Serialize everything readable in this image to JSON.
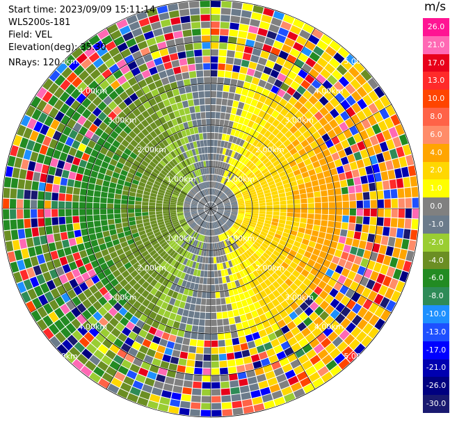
{
  "info": {
    "start_time": "Start time: 2023/09/09 15:11:14",
    "instrument": "WLS200s-181",
    "field": "Field: VEL",
    "elevation": "Elevation(deg): 35.30",
    "nrays": "NRays: 120"
  },
  "colorbar": {
    "unit": "m/s",
    "ticks": [
      "26.0",
      "21.0",
      "17.0",
      "13.0",
      "10.0",
      "8.0",
      "6.0",
      "4.0",
      "2.0",
      "1.0",
      "0.0",
      "-1.0",
      "-2.0",
      "-4.0",
      "-6.0",
      "-8.0",
      "-10.0",
      "-13.0",
      "-17.0",
      "-21.0",
      "-26.0",
      "-30.0"
    ],
    "colors": [
      "#ff1493",
      "#ff69b4",
      "#e8001a",
      "#ff2a2a",
      "#ff4500",
      "#ff6347",
      "#ff8c69",
      "#ffa500",
      "#ffd700",
      "#ffff00",
      "#808080",
      "#6b7b8b",
      "#9acd32",
      "#6b8e23",
      "#228b22",
      "#2e8b57",
      "#1e90ff",
      "#1e50ff",
      "#0000ff",
      "#0000b0",
      "#000080",
      "#191970"
    ]
  },
  "chart_data": {
    "type": "heatmap",
    "projection": "polar PPI",
    "field": "VEL",
    "unit": "m/s",
    "nrays": 120,
    "elevation_deg": 35.3,
    "range_rings_km": [
      1.0,
      2.0,
      3.0,
      4.0,
      5.0
    ],
    "ring_labels": [
      "1.00km",
      "2.00km",
      "3.00km",
      "4.00km",
      "5.00km"
    ],
    "color_scale": {
      "bounds": [
        -30.0,
        -26.0,
        -21.0,
        -17.0,
        -13.0,
        -10.0,
        -8.0,
        -6.0,
        -4.0,
        -2.0,
        -1.0,
        0.0,
        1.0,
        2.0,
        4.0,
        6.0,
        8.0,
        10.0,
        13.0,
        17.0,
        21.0,
        26.0
      ]
    },
    "pattern": {
      "near_range_positive_sector_deg": [
        30,
        150
      ],
      "near_range_negative_sector_deg": [
        210,
        330
      ],
      "near_zero_core_km": 0.6
    }
  }
}
